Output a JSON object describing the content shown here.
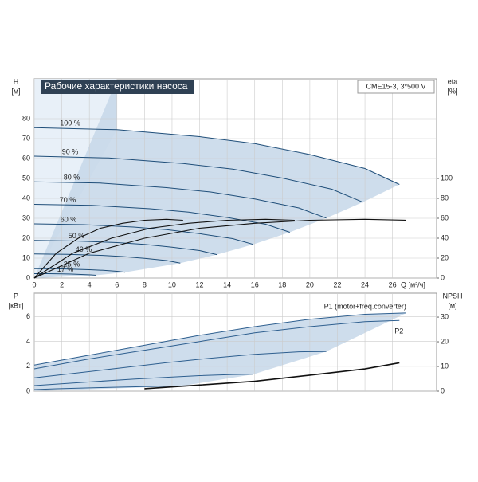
{
  "chart_data": [
    {
      "type": "line",
      "title": "Рабочие характеристики насоса",
      "subtitle": "CME15-3, 3*500 V",
      "xlabel": "Q [м³/ч]",
      "ylabel": "H",
      "yunit": "[м]",
      "y2label": "eta",
      "y2unit": "[%]",
      "xlim": [
        0,
        29.2
      ],
      "ylim": [
        0,
        100
      ],
      "y2lim": [
        0,
        200
      ],
      "xticks": [
        0,
        2,
        4,
        6,
        8,
        10,
        12,
        14,
        16,
        18,
        20,
        22,
        24,
        26
      ],
      "yticks": [
        0,
        10,
        20,
        30,
        40,
        50,
        60,
        70,
        80
      ],
      "y2ticks": [
        0,
        20,
        40,
        60,
        80,
        100
      ],
      "grid": true,
      "series": [
        {
          "name": "100 %",
          "color": "#1f4e79",
          "x": [
            0,
            6,
            12,
            16,
            20,
            24,
            26.5
          ],
          "values": [
            75.5,
            74.5,
            71,
            67.5,
            62,
            55,
            47
          ]
        },
        {
          "name": "90 %",
          "color": "#1f4e79",
          "x": [
            0,
            5.4,
            10.8,
            14.4,
            18,
            21.6,
            23.85
          ],
          "values": [
            61.2,
            60.3,
            57.5,
            54.7,
            50.2,
            44.6,
            38.1
          ]
        },
        {
          "name": "80 %",
          "color": "#1f4e79",
          "x": [
            0,
            4.8,
            9.6,
            12.8,
            16,
            19.2,
            21.2
          ],
          "values": [
            48.3,
            47.7,
            45.4,
            43.2,
            39.7,
            35.2,
            30.1
          ]
        },
        {
          "name": "70 %",
          "color": "#1f4e79",
          "x": [
            0,
            4.2,
            8.4,
            11.2,
            14,
            16.8,
            18.55
          ],
          "values": [
            37,
            36.5,
            34.8,
            33.1,
            30.4,
            27,
            23
          ]
        },
        {
          "name": "60 %",
          "color": "#1f4e79",
          "x": [
            0,
            3.6,
            7.2,
            9.6,
            12,
            14.4,
            15.9
          ],
          "values": [
            27.2,
            26.8,
            25.6,
            24.3,
            22.3,
            19.8,
            16.9
          ]
        },
        {
          "name": "50 %",
          "color": "#1f4e79",
          "x": [
            0,
            3,
            6,
            8,
            10,
            12,
            13.25
          ],
          "values": [
            18.9,
            18.6,
            17.8,
            16.9,
            15.5,
            13.8,
            11.75
          ]
        },
        {
          "name": "40 %",
          "color": "#1f4e79",
          "x": [
            0,
            2.4,
            4.8,
            6.4,
            8,
            9.6,
            10.6
          ],
          "values": [
            12.1,
            11.9,
            11.4,
            10.8,
            9.9,
            8.8,
            7.5
          ]
        },
        {
          "name": "25 %",
          "color": "#1f4e79",
          "x": [
            0,
            1.5,
            3,
            4,
            5,
            6,
            6.6
          ],
          "values": [
            4.7,
            4.7,
            4.4,
            4.2,
            3.9,
            3.4,
            2.9
          ]
        },
        {
          "name": "17 %",
          "color": "#1f4e79",
          "x": [
            0,
            1,
            2,
            2.7,
            3.4,
            4.1,
            4.5
          ],
          "values": [
            2.2,
            2.2,
            2.1,
            2.0,
            1.8,
            1.6,
            1.4
          ]
        },
        {
          "axis": "y2",
          "color": "#111111",
          "x": [
            0,
            4,
            8,
            12,
            16,
            20,
            24,
            27
          ],
          "values": [
            0,
            25,
            40,
            50,
            55,
            58,
            59,
            58
          ]
        },
        {
          "axis": "y2",
          "color": "#111111",
          "x": [
            0,
            2.8,
            5.6,
            8.4,
            11.2,
            14,
            16.8,
            18.9
          ],
          "values": [
            0,
            25,
            40,
            50,
            55,
            58,
            59,
            58
          ]
        },
        {
          "axis": "y2",
          "color": "#111111",
          "x": [
            0,
            1.6,
            3.2,
            4.8,
            6.4,
            8,
            9.6,
            10.8
          ],
          "values": [
            0,
            25,
            40,
            50,
            55,
            58,
            59,
            58
          ]
        }
      ]
    },
    {
      "type": "line",
      "ylabel": "P",
      "yunit": "[кВт]",
      "y2label": "NPSH",
      "y2unit": "[м]",
      "xlim": [
        0,
        29.2
      ],
      "ylim": [
        0,
        7.9
      ],
      "y2lim": [
        0,
        39.7
      ],
      "yticks": [
        0,
        2,
        4,
        6
      ],
      "y2ticks": [
        0,
        10,
        20,
        30
      ],
      "grid": true,
      "series": [
        {
          "name": "P1 (motor+freq.converter)",
          "color": "#2e5f8f",
          "x": [
            0,
            4,
            8,
            12,
            16,
            20,
            24,
            27
          ],
          "values": [
            2.1,
            2.9,
            3.7,
            4.5,
            5.2,
            5.8,
            6.2,
            6.3
          ]
        },
        {
          "name": "P2",
          "color": "#2e5f8f",
          "x": [
            0,
            4,
            8,
            12,
            16,
            20,
            24,
            26.5
          ],
          "values": [
            1.8,
            2.6,
            3.3,
            4.0,
            4.7,
            5.2,
            5.6,
            5.7
          ]
        },
        {
          "color": "#2e5f8f",
          "x": [
            0,
            3.2,
            6.4,
            9.6,
            12.8,
            16,
            19.2,
            21.2
          ],
          "values": [
            1.08,
            1.48,
            1.89,
            2.3,
            2.66,
            2.97,
            3.17,
            3.2
          ]
        },
        {
          "color": "#2e5f8f",
          "x": [
            0,
            2.4,
            4.8,
            7.2,
            9.6,
            12,
            14.4,
            15.9
          ],
          "values": [
            0.45,
            0.63,
            0.8,
            0.97,
            1.12,
            1.25,
            1.34,
            1.36
          ]
        },
        {
          "color": "#2e5f8f",
          "x": [
            0,
            1.6,
            3.2,
            4.8,
            6.4,
            8,
            9.6,
            10.6
          ],
          "values": [
            0.13,
            0.19,
            0.24,
            0.29,
            0.33,
            0.37,
            0.4,
            0.4
          ]
        },
        {
          "axis": "y2",
          "color": "#111111",
          "x": [
            8,
            12,
            16,
            20,
            24,
            26.5
          ],
          "values": [
            1,
            2.5,
            4,
            6.5,
            9,
            11.5
          ]
        }
      ]
    }
  ]
}
